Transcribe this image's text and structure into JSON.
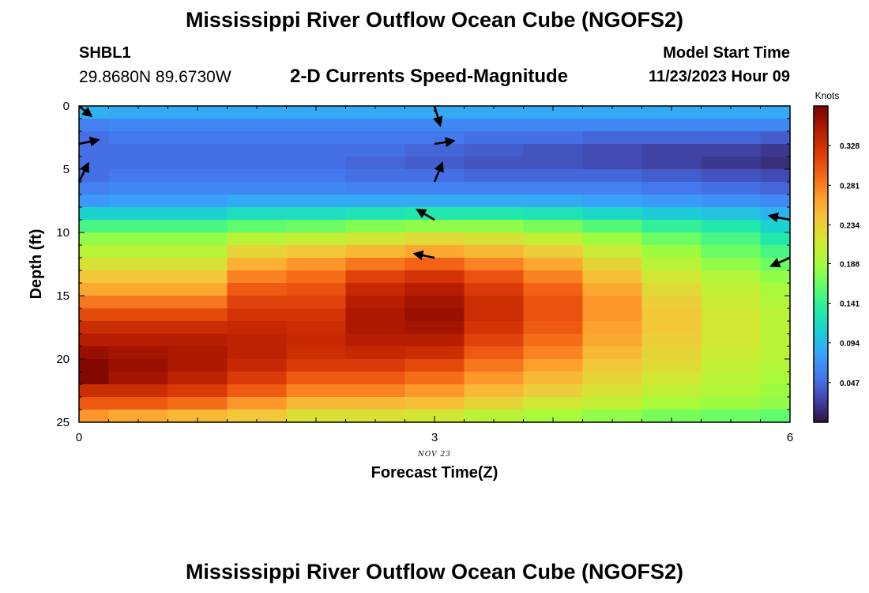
{
  "header": {
    "title": "Mississippi River Outflow Ocean Cube (NGOFS2)",
    "station": "SHBL1",
    "coords": "29.8680N  89.6730W",
    "subtitle": "2-D Currents Speed-Magnitude",
    "start_label": "Model Start Time",
    "start_value": "11/23/2023 Hour 09"
  },
  "footer": {
    "title": "Mississippi River Outflow Ocean Cube (NGOFS2)"
  },
  "colors": {
    "colormap": [
      "#30123b",
      "#4145ab",
      "#4675ed",
      "#39a2fc",
      "#1bcfd4",
      "#24eca6",
      "#61fc6c",
      "#a4fc3b",
      "#d1e834",
      "#f3c63a",
      "#fe9b2d",
      "#f36315",
      "#d93806",
      "#b11901",
      "#7a0402"
    ]
  },
  "chart_data": {
    "type": "heatmap",
    "title": "2-D Currents Speed-Magnitude",
    "xlabel": "Forecast Time(Z)",
    "ylabel": "Depth (ft)",
    "x_ticks": [
      "0",
      "3",
      "6"
    ],
    "x_sublabel": "NOV 23",
    "y_ticks": [
      "0",
      "5",
      "10",
      "15",
      "20",
      "25"
    ],
    "xlim": [
      0,
      6
    ],
    "ylim": [
      0,
      25
    ],
    "colorbar": {
      "label": "Knots",
      "ticks": [
        "0.047",
        "0.094",
        "0.141",
        "0.188",
        "0.234",
        "0.281",
        "0.328"
      ],
      "range": [
        0.0,
        0.375
      ]
    },
    "x": [
      0.0,
      0.5,
      1.0,
      1.5,
      2.0,
      2.5,
      3.0,
      3.5,
      4.0,
      4.5,
      5.0,
      5.5,
      6.0
    ],
    "depth_levels": 25,
    "profiles": [
      [
        0.09,
        0.06,
        0.05,
        0.05,
        0.05,
        0.05,
        0.06,
        0.075,
        0.11,
        0.15,
        0.18,
        0.2,
        0.22,
        0.24,
        0.26,
        0.285,
        0.31,
        0.33,
        0.345,
        0.36,
        0.37,
        0.37,
        0.33,
        0.3,
        0.27
      ],
      [
        0.085,
        0.065,
        0.055,
        0.05,
        0.05,
        0.055,
        0.065,
        0.08,
        0.11,
        0.15,
        0.18,
        0.2,
        0.22,
        0.24,
        0.26,
        0.285,
        0.31,
        0.33,
        0.345,
        0.355,
        0.36,
        0.355,
        0.33,
        0.3,
        0.26
      ],
      [
        0.085,
        0.065,
        0.055,
        0.05,
        0.05,
        0.055,
        0.065,
        0.08,
        0.11,
        0.15,
        0.18,
        0.2,
        0.22,
        0.24,
        0.26,
        0.285,
        0.31,
        0.33,
        0.345,
        0.35,
        0.35,
        0.34,
        0.32,
        0.29,
        0.25
      ],
      [
        0.085,
        0.065,
        0.055,
        0.05,
        0.05,
        0.055,
        0.065,
        0.085,
        0.12,
        0.16,
        0.2,
        0.23,
        0.255,
        0.28,
        0.3,
        0.315,
        0.325,
        0.335,
        0.34,
        0.34,
        0.335,
        0.32,
        0.3,
        0.27,
        0.24
      ],
      [
        0.085,
        0.065,
        0.055,
        0.05,
        0.05,
        0.055,
        0.065,
        0.085,
        0.12,
        0.165,
        0.205,
        0.24,
        0.27,
        0.29,
        0.305,
        0.315,
        0.325,
        0.33,
        0.335,
        0.33,
        0.32,
        0.3,
        0.28,
        0.25,
        0.22
      ],
      [
        0.085,
        0.065,
        0.055,
        0.05,
        0.045,
        0.05,
        0.06,
        0.085,
        0.125,
        0.175,
        0.215,
        0.25,
        0.285,
        0.315,
        0.335,
        0.345,
        0.35,
        0.35,
        0.345,
        0.335,
        0.32,
        0.3,
        0.28,
        0.25,
        0.22
      ],
      [
        0.085,
        0.065,
        0.055,
        0.045,
        0.04,
        0.05,
        0.06,
        0.085,
        0.13,
        0.18,
        0.225,
        0.26,
        0.295,
        0.325,
        0.345,
        0.355,
        0.36,
        0.355,
        0.345,
        0.33,
        0.31,
        0.29,
        0.27,
        0.245,
        0.215
      ],
      [
        0.085,
        0.065,
        0.05,
        0.04,
        0.035,
        0.045,
        0.06,
        0.085,
        0.13,
        0.18,
        0.22,
        0.25,
        0.28,
        0.305,
        0.32,
        0.33,
        0.33,
        0.325,
        0.315,
        0.3,
        0.285,
        0.27,
        0.25,
        0.23,
        0.2
      ],
      [
        0.085,
        0.065,
        0.05,
        0.035,
        0.035,
        0.045,
        0.06,
        0.085,
        0.125,
        0.17,
        0.205,
        0.235,
        0.26,
        0.28,
        0.295,
        0.305,
        0.305,
        0.3,
        0.29,
        0.28,
        0.265,
        0.25,
        0.235,
        0.215,
        0.19
      ],
      [
        0.085,
        0.065,
        0.045,
        0.03,
        0.03,
        0.045,
        0.06,
        0.08,
        0.115,
        0.155,
        0.185,
        0.21,
        0.23,
        0.245,
        0.26,
        0.27,
        0.27,
        0.265,
        0.26,
        0.25,
        0.24,
        0.23,
        0.22,
        0.205,
        0.18
      ],
      [
        0.085,
        0.065,
        0.045,
        0.025,
        0.025,
        0.04,
        0.055,
        0.075,
        0.105,
        0.14,
        0.165,
        0.185,
        0.2,
        0.215,
        0.225,
        0.235,
        0.24,
        0.24,
        0.235,
        0.23,
        0.225,
        0.215,
        0.205,
        0.19,
        0.17
      ],
      [
        0.085,
        0.065,
        0.045,
        0.025,
        0.02,
        0.035,
        0.05,
        0.07,
        0.1,
        0.13,
        0.15,
        0.165,
        0.18,
        0.195,
        0.205,
        0.21,
        0.215,
        0.215,
        0.215,
        0.21,
        0.205,
        0.2,
        0.195,
        0.185,
        0.165
      ],
      [
        0.085,
        0.065,
        0.04,
        0.02,
        0.015,
        0.03,
        0.045,
        0.065,
        0.09,
        0.11,
        0.13,
        0.15,
        0.165,
        0.18,
        0.19,
        0.195,
        0.2,
        0.2,
        0.2,
        0.2,
        0.195,
        0.19,
        0.185,
        0.18,
        0.16
      ]
    ],
    "vectors": [
      {
        "t": 0,
        "depth": 0,
        "u": 0.6,
        "v": 0.5
      },
      {
        "t": 0,
        "depth": 3,
        "u": 0.95,
        "v": -0.2
      },
      {
        "t": 0,
        "depth": 6,
        "u": 0.45,
        "v": -0.9
      },
      {
        "t": 3,
        "depth": 0,
        "u": 0.28,
        "v": 0.95
      },
      {
        "t": 3,
        "depth": 3,
        "u": 0.95,
        "v": -0.15
      },
      {
        "t": 3,
        "depth": 6,
        "u": 0.38,
        "v": -0.92
      },
      {
        "t": 3,
        "depth": 9,
        "u": -0.85,
        "v": -0.5
      },
      {
        "t": 3,
        "depth": 12,
        "u": -0.98,
        "v": -0.2
      },
      {
        "t": 6,
        "depth": 9,
        "u": -1.0,
        "v": -0.2
      },
      {
        "t": 6,
        "depth": 12,
        "u": -0.92,
        "v": 0.4
      }
    ]
  }
}
